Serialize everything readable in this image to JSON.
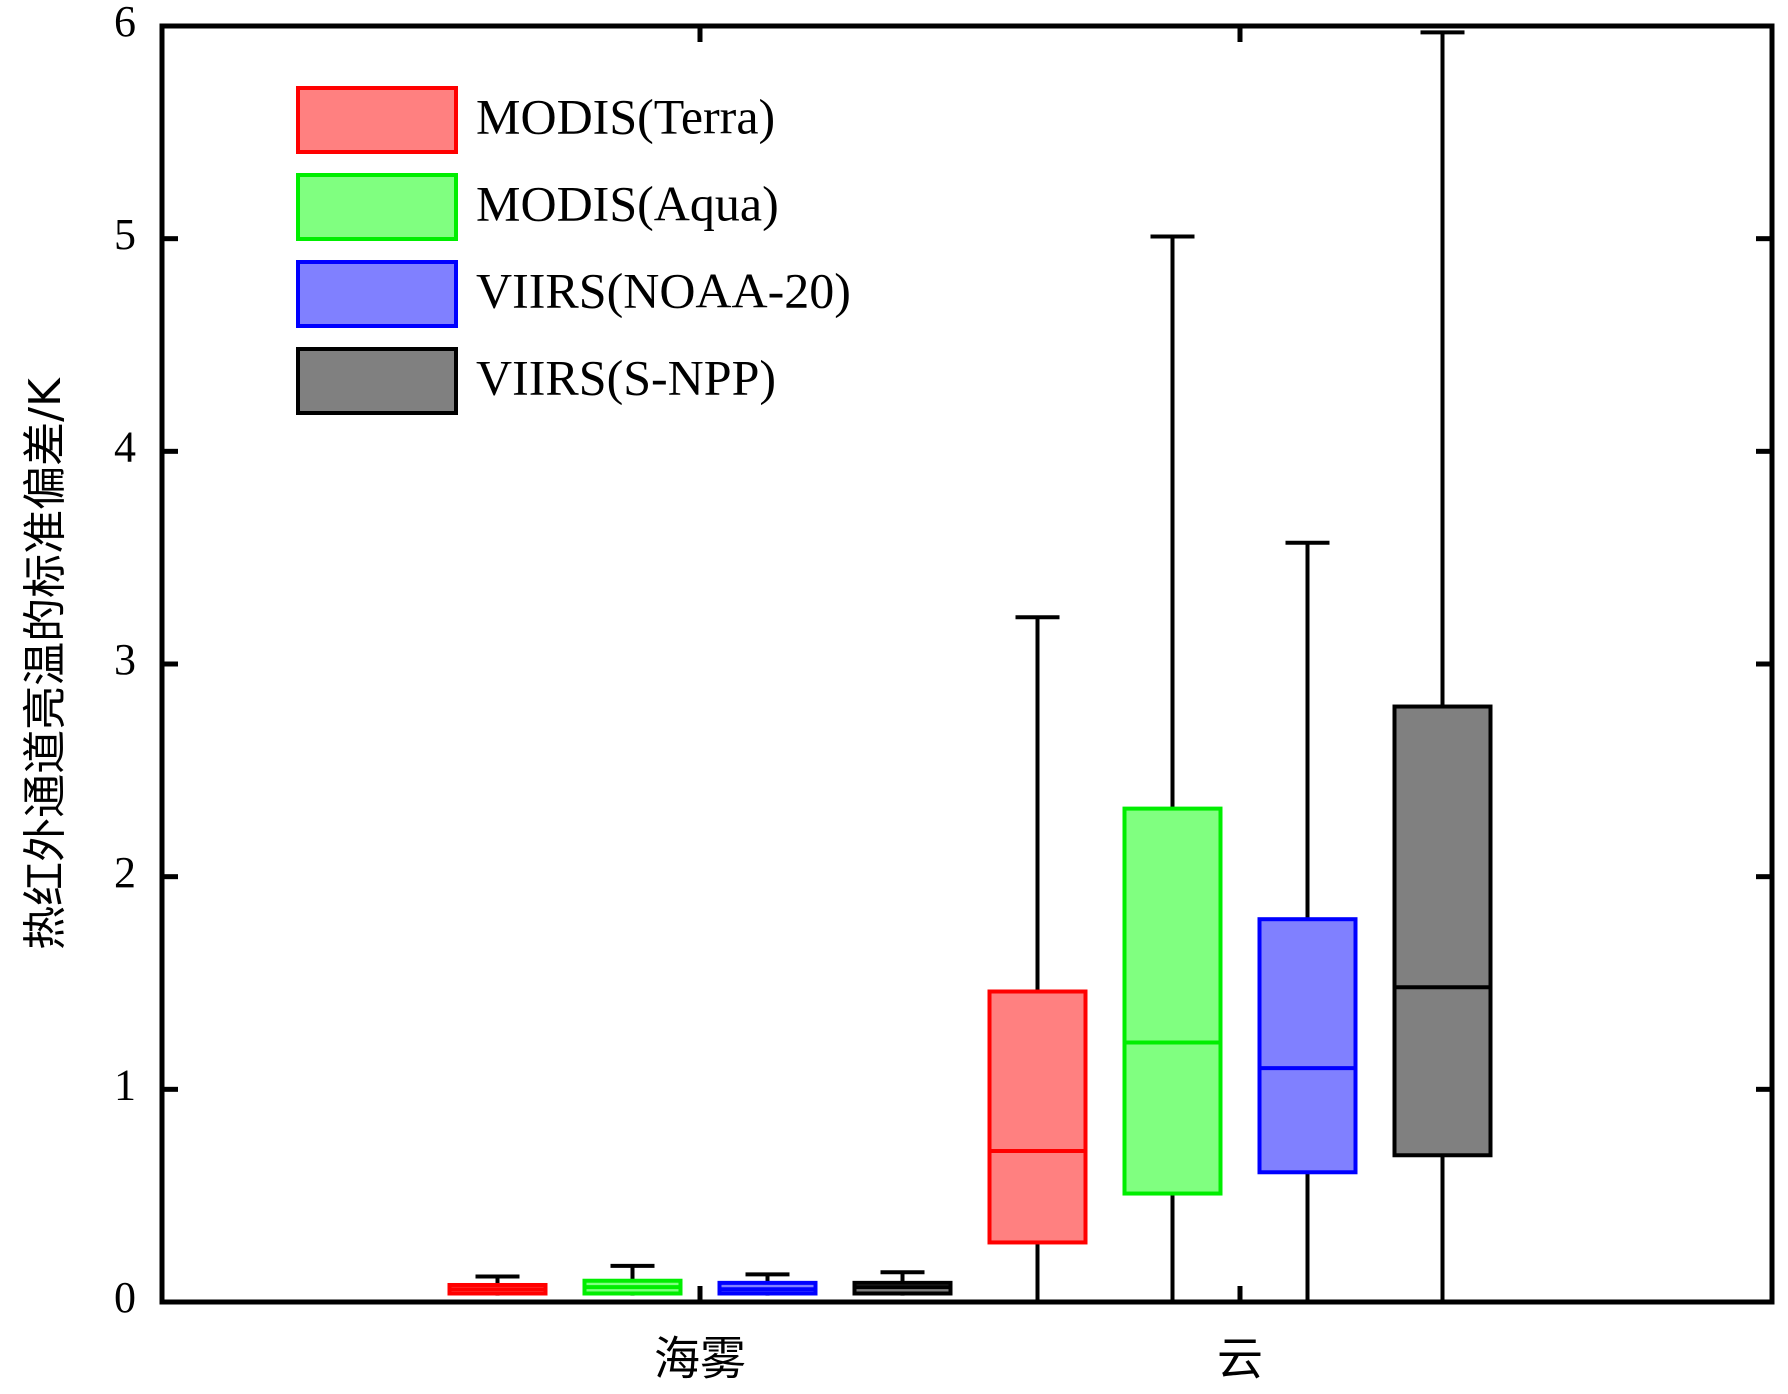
{
  "chart_data": {
    "type": "box",
    "xlabel": "",
    "ylabel": "热红外通道亮温的标准偏差/K",
    "ylim": [
      0,
      6
    ],
    "yticks": [
      0,
      1,
      2,
      3,
      4,
      5,
      6
    ],
    "categories": [
      "海雾",
      "云"
    ],
    "legend_position": "top-left",
    "grid": false,
    "series": [
      {
        "name": "MODIS(Terra)",
        "color": "#ff8080",
        "edge": "#ff0000",
        "boxes": [
          {
            "min": 0.03,
            "q1": 0.04,
            "median": 0.06,
            "q3": 0.08,
            "max": 0.12
          },
          {
            "min": 0.0,
            "q1": 0.28,
            "median": 0.71,
            "q3": 1.46,
            "max": 3.22
          }
        ]
      },
      {
        "name": "MODIS(Aqua)",
        "color": "#80ff80",
        "edge": "#00ee00",
        "boxes": [
          {
            "min": 0.03,
            "q1": 0.04,
            "median": 0.07,
            "q3": 0.1,
            "max": 0.17
          },
          {
            "min": 0.0,
            "q1": 0.51,
            "median": 1.22,
            "q3": 2.32,
            "max": 5.01
          }
        ]
      },
      {
        "name": "VIIRS(NOAA-20)",
        "color": "#8080ff",
        "edge": "#0000ff",
        "boxes": [
          {
            "min": 0.03,
            "q1": 0.04,
            "median": 0.06,
            "q3": 0.09,
            "max": 0.13
          },
          {
            "min": 0.0,
            "q1": 0.61,
            "median": 1.1,
            "q3": 1.8,
            "max": 3.57
          }
        ]
      },
      {
        "name": "VIIRS(S-NPP)",
        "color": "#808080",
        "edge": "#000000",
        "boxes": [
          {
            "min": 0.03,
            "q1": 0.04,
            "median": 0.07,
            "q3": 0.09,
            "max": 0.14
          },
          {
            "min": 0.0,
            "q1": 0.69,
            "median": 1.48,
            "q3": 2.8,
            "max": 5.97
          }
        ]
      }
    ]
  }
}
